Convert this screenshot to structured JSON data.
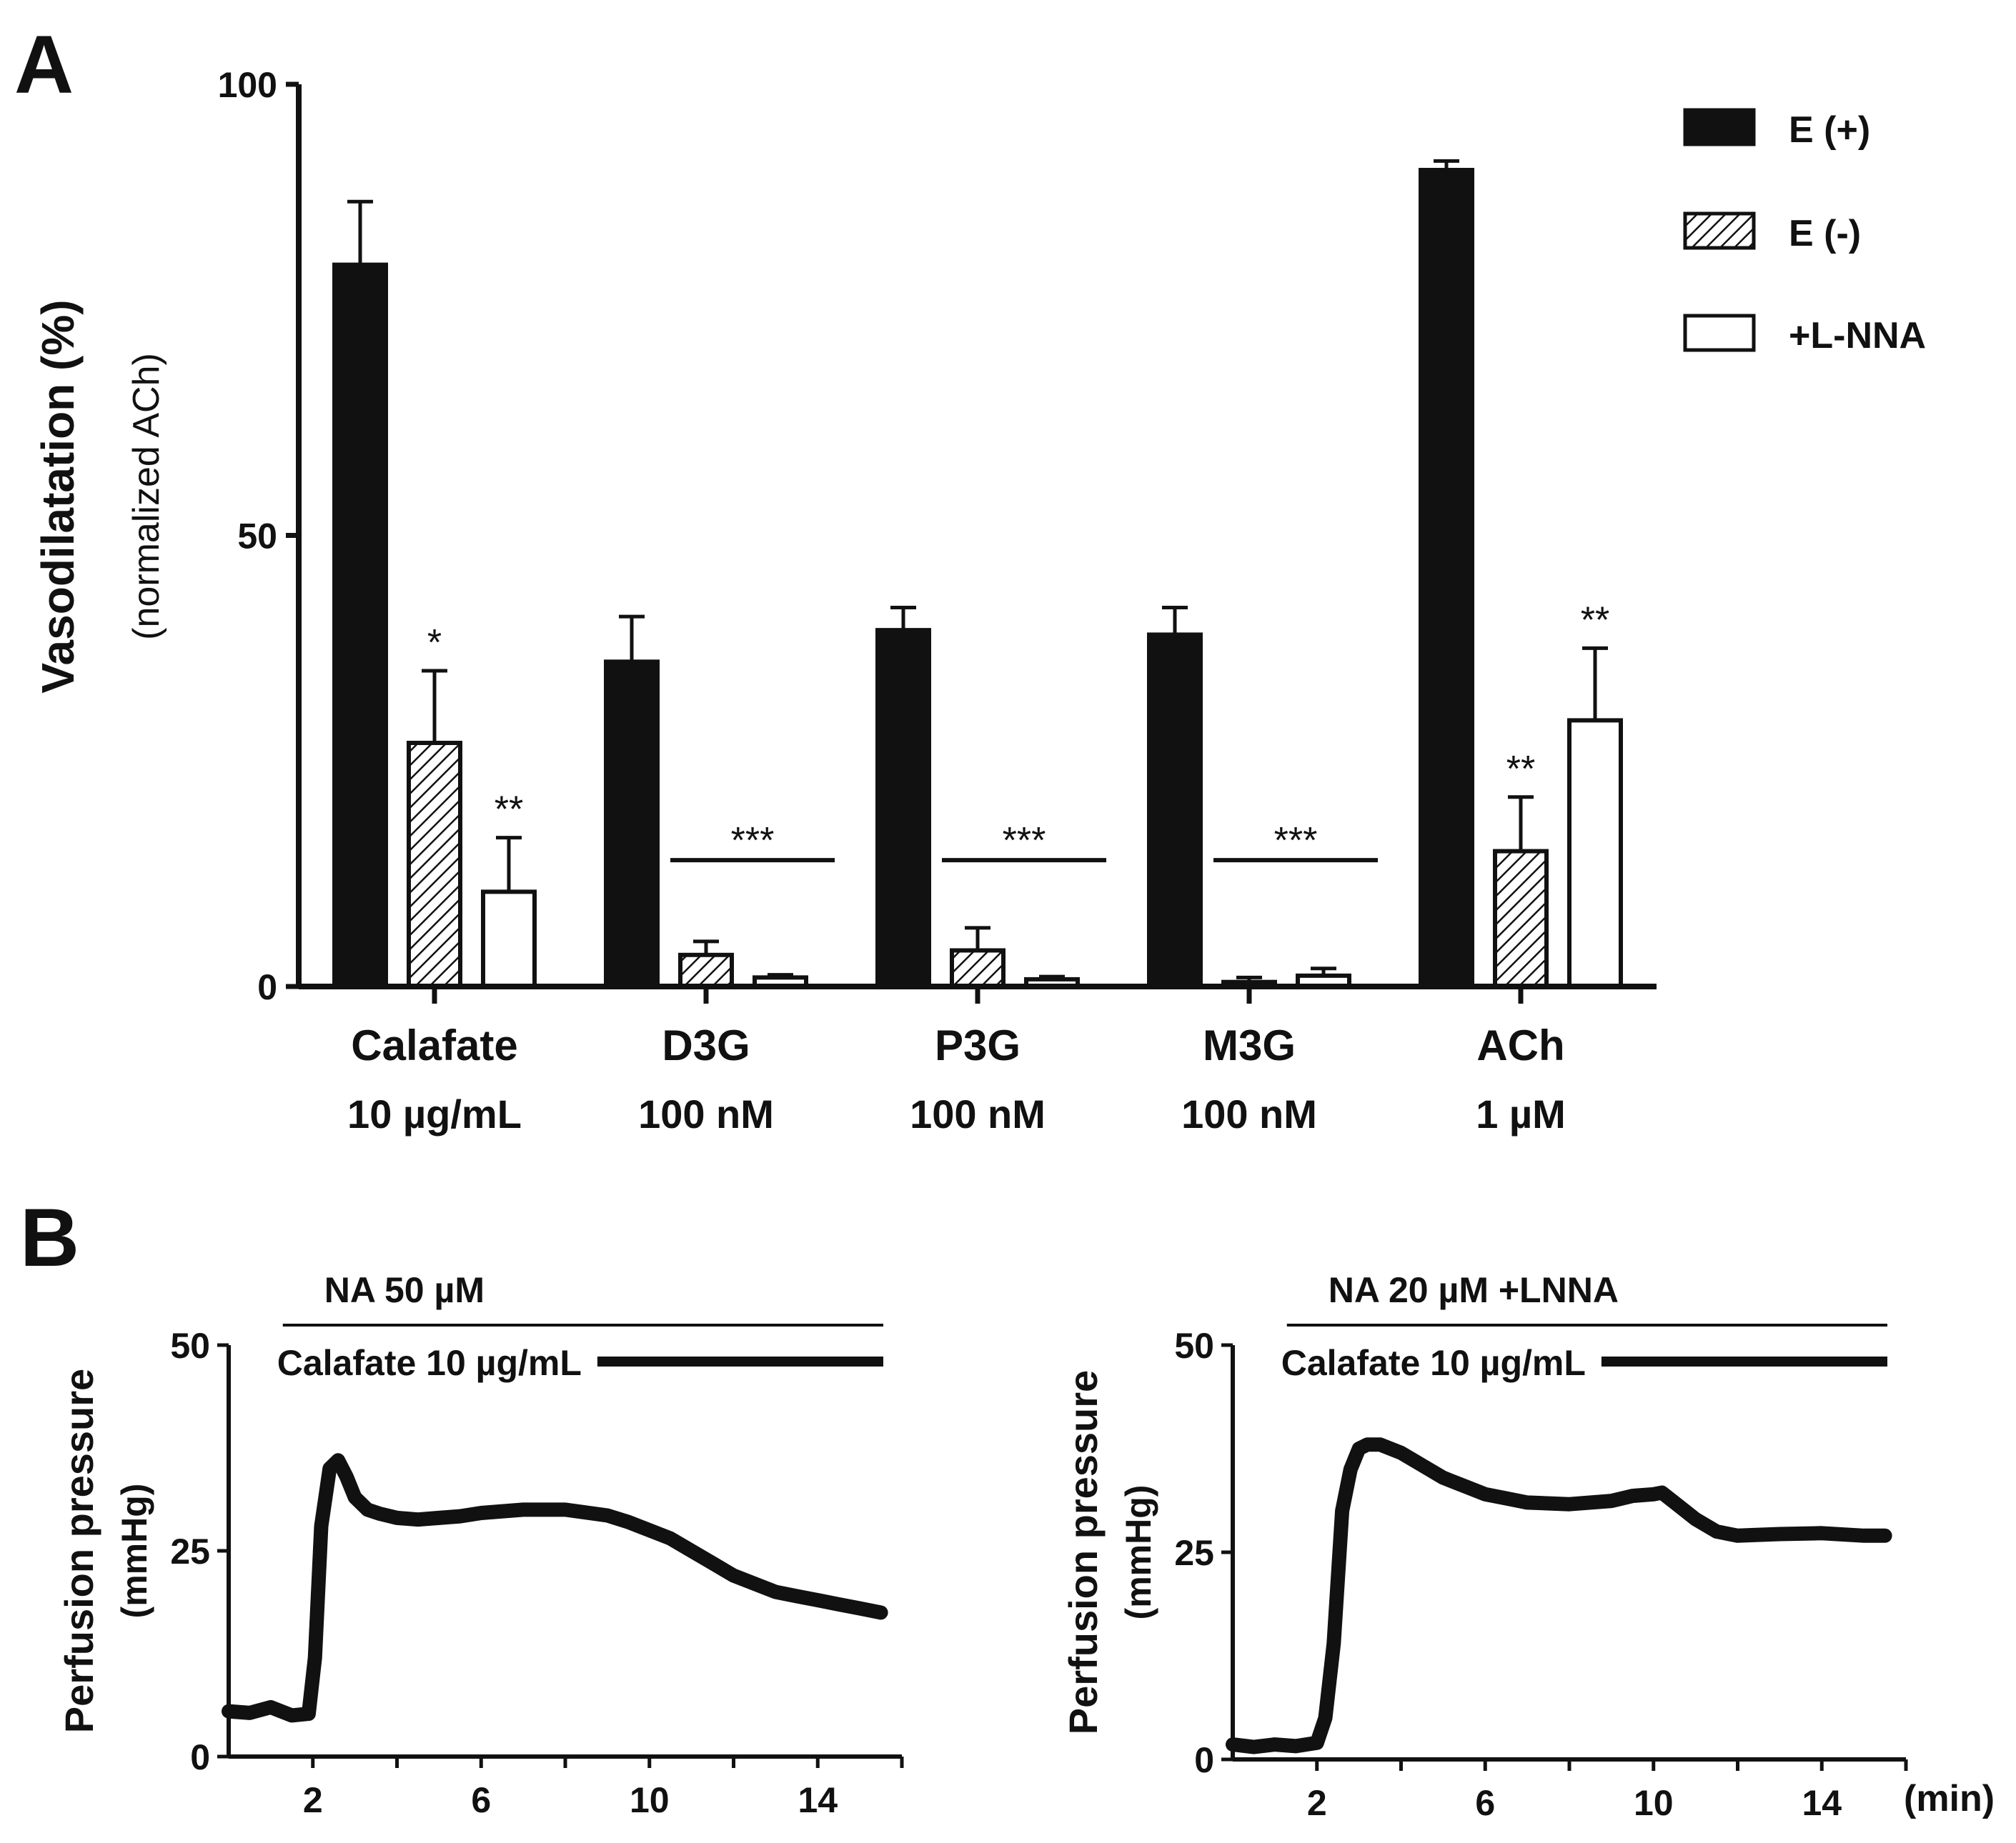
{
  "panels": {
    "a": {
      "letter": "A"
    },
    "b": {
      "letter": "B",
      "time_unit": "(min)"
    }
  },
  "colors": {
    "ink": "#111111",
    "background": "#ffffff"
  },
  "chart_data": [
    {
      "type": "bar",
      "panel": "A",
      "ylabel": "Vasodilatation (%)",
      "ylabel_sub": "(normalized ACh)",
      "ylim": [
        0,
        100
      ],
      "yticks": [
        "0",
        "50",
        "100"
      ],
      "categories": [
        {
          "name": "Calafate",
          "dose": "10 µg/mL"
        },
        {
          "name": "D3G",
          "dose": "100 nM"
        },
        {
          "name": "P3G",
          "dose": "100 nM"
        },
        {
          "name": "M3G",
          "dose": "100 nM"
        },
        {
          "name": "ACh",
          "dose": "1 µM"
        }
      ],
      "legend_position": "top-right",
      "series": [
        {
          "name": "E (+)",
          "fill": "solid",
          "values": [
            80,
            36,
            39.5,
            39,
            90.5
          ],
          "errors": [
            7,
            5,
            2.5,
            3,
            1
          ]
        },
        {
          "name": "E (-)",
          "fill": "hatched",
          "values": [
            27,
            3.5,
            4,
            0.5,
            15
          ],
          "errors": [
            8,
            1.5,
            2.5,
            0.5,
            6
          ]
        },
        {
          "name": "+L-NNA",
          "fill": "open",
          "values": [
            10.5,
            1,
            0.8,
            1.2,
            29.5
          ],
          "errors": [
            6,
            0.3,
            0.3,
            0.8,
            8
          ]
        }
      ],
      "significance": [
        {
          "category": "Calafate",
          "series": "E (-)",
          "label": "*"
        },
        {
          "category": "Calafate",
          "series": "+L-NNA",
          "label": "**"
        },
        {
          "category": "D3G",
          "series": "both",
          "label": "***"
        },
        {
          "category": "P3G",
          "series": "both",
          "label": "***"
        },
        {
          "category": "M3G",
          "series": "both",
          "label": "***"
        },
        {
          "category": "ACh",
          "series": "E (-)",
          "label": "**"
        },
        {
          "category": "ACh",
          "series": "+L-NNA",
          "label": "**"
        }
      ]
    },
    {
      "type": "line",
      "panel": "B-left",
      "ylabel": "Perfusion pressure",
      "ylabel_sub": "(mmHg)",
      "ylim": [
        0,
        50
      ],
      "xlim": [
        0,
        16
      ],
      "yticks": [
        "0",
        "25",
        "50"
      ],
      "xticks": [
        "2",
        "6",
        "10",
        "14"
      ],
      "treatments": {
        "line1": "NA 50 µM",
        "line2": "Calafate 10 µg/mL"
      },
      "x": [
        0,
        0.5,
        1,
        1.5,
        1.9,
        2.05,
        2.2,
        2.4,
        2.6,
        2.8,
        3,
        3.3,
        3.6,
        4,
        4.5,
        5,
        5.5,
        6,
        7,
        8,
        9,
        9.5,
        10,
        10.5,
        11,
        11.5,
        12,
        12.5,
        13,
        13.5,
        14,
        14.5,
        15,
        15.5
      ],
      "y": [
        5.5,
        5.3,
        6,
        5,
        5.2,
        12,
        28,
        35,
        36,
        34,
        31.5,
        30,
        29.5,
        29,
        28.8,
        29,
        29.2,
        29.6,
        30,
        30,
        29.3,
        28.5,
        27.5,
        26.5,
        25,
        23.5,
        22,
        21,
        20,
        19.5,
        19,
        18.5,
        18,
        17.5
      ]
    },
    {
      "type": "line",
      "panel": "B-right",
      "ylabel": "Perfusion pressure",
      "ylabel_sub": "(mmHg)",
      "ylim": [
        0,
        50
      ],
      "xlim": [
        0,
        16
      ],
      "yticks": [
        "0",
        "25",
        "50"
      ],
      "xticks": [
        "2",
        "6",
        "10",
        "14"
      ],
      "treatments": {
        "line1": "NA 20 µM +LNNA",
        "line2": "Calafate 10 µg/mL"
      },
      "x": [
        0,
        0.5,
        1,
        1.5,
        2,
        2.2,
        2.4,
        2.6,
        2.8,
        3,
        3.2,
        3.5,
        4,
        4.5,
        5,
        5.5,
        6,
        6.5,
        7,
        8,
        9,
        9.5,
        10,
        10.2,
        10.5,
        11,
        11.5,
        12,
        13,
        14,
        15,
        15.5
      ],
      "y": [
        1.8,
        1.5,
        1.8,
        1.6,
        2,
        5,
        14,
        30,
        35,
        37.5,
        38,
        38,
        37,
        35.5,
        34,
        33,
        32,
        31.5,
        31,
        30.8,
        31.2,
        31.8,
        32,
        32.2,
        31,
        29,
        27.5,
        27,
        27.2,
        27.3,
        27,
        27
      ]
    }
  ]
}
